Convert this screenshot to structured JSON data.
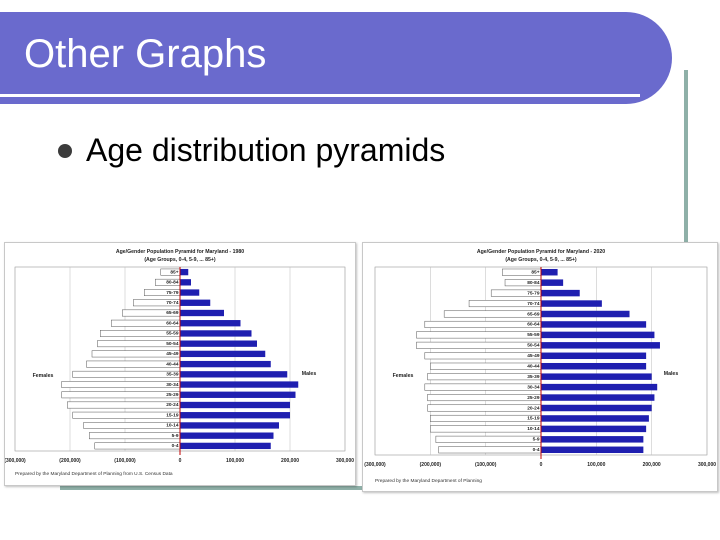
{
  "slide": {
    "title": "Other Graphs",
    "bullet": "Age distribution pyramids"
  },
  "chart_data": [
    {
      "type": "bar",
      "title": "Age/Gender Population Pyramid for Maryland - 1980",
      "subtitle": "(Age Groups, 0-4, 5-9, ... 85+)",
      "source": "Prepared by the Maryland Department of Planning from U.S. Census Data",
      "female_label": "Females",
      "male_label": "Males",
      "xlim": [
        -300000,
        300000
      ],
      "x_ticks": [
        "(300,000)",
        "(200,000)",
        "(100,000)",
        "0",
        "100,000",
        "200,000",
        "300,000"
      ],
      "categories": [
        "0-4",
        "5-9",
        "10-14",
        "15-19",
        "20-24",
        "25-29",
        "30-34",
        "35-39",
        "40-44",
        "45-49",
        "50-54",
        "55-59",
        "60-64",
        "65-69",
        "70-74",
        "75-79",
        "80-84",
        "85+"
      ],
      "series": [
        {
          "name": "Females",
          "values": [
            155000,
            165000,
            175000,
            195000,
            205000,
            215000,
            215000,
            195000,
            170000,
            160000,
            150000,
            145000,
            125000,
            105000,
            85000,
            65000,
            45000,
            35000
          ]
        },
        {
          "name": "Males",
          "values": [
            165000,
            170000,
            180000,
            200000,
            200000,
            210000,
            215000,
            195000,
            165000,
            155000,
            140000,
            130000,
            110000,
            80000,
            55000,
            35000,
            20000,
            15000
          ]
        }
      ]
    },
    {
      "type": "bar",
      "title": "Age/Gender Population Pyramid for Maryland - 2020",
      "subtitle": "(Age Groups, 0-4, 5-9, ... 85+)",
      "source": "Prepared by the Maryland Department of Planning",
      "female_label": "Females",
      "male_label": "Males",
      "xlim": [
        -300000,
        300000
      ],
      "x_ticks": [
        "(300,000)",
        "(200,000)",
        "(100,000)",
        "0",
        "100,000",
        "200,000",
        "300,000"
      ],
      "categories": [
        "0-4",
        "5-9",
        "10-14",
        "15-19",
        "20-24",
        "25-29",
        "30-34",
        "35-39",
        "40-44",
        "45-49",
        "50-54",
        "55-59",
        "60-64",
        "65-69",
        "70-74",
        "75-79",
        "80-84",
        "85+"
      ],
      "series": [
        {
          "name": "Females",
          "values": [
            185000,
            190000,
            200000,
            200000,
            205000,
            205000,
            210000,
            205000,
            200000,
            210000,
            225000,
            225000,
            210000,
            175000,
            130000,
            90000,
            65000,
            70000
          ]
        },
        {
          "name": "Males",
          "values": [
            185000,
            185000,
            190000,
            195000,
            200000,
            205000,
            210000,
            200000,
            190000,
            190000,
            215000,
            205000,
            190000,
            160000,
            110000,
            70000,
            40000,
            30000
          ]
        }
      ]
    }
  ],
  "colors": {
    "title_bar": "#6a6acd",
    "female_bar": "#ffffff",
    "male_bar": "#1f1fb0",
    "axis": "#c00000"
  }
}
